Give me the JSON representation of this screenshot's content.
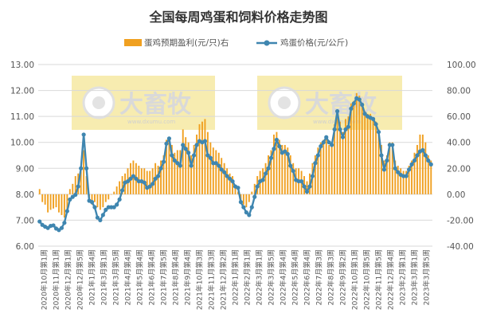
{
  "chart_data": {
    "type": "bar+line",
    "title": "全国每周鸡蛋和饲料价格走势图",
    "legend": {
      "position": "top",
      "bar_label": "蛋鸡预期盈利(元/只)右",
      "line_label": "鸡蛋价格(元/公斤)"
    },
    "colors": {
      "bar": "#f0a020",
      "line": "#3f86b0",
      "marker": "#3f86b0",
      "watermark": "#f7ecb0"
    },
    "left_axis": {
      "min": 6.0,
      "max": 13.0,
      "step": 1.0,
      "ticks": [
        "6.00",
        "7.00",
        "8.00",
        "9.00",
        "10.00",
        "11.00",
        "12.00",
        "13.00"
      ]
    },
    "right_axis": {
      "min": -40,
      "max": 100,
      "step": 20,
      "ticks": [
        "-40.00",
        "-20.00",
        "0.00",
        "20.00",
        "40.00",
        "60.00",
        "80.00",
        "100.00"
      ]
    },
    "grid": true,
    "x_labels": [
      "2020年10月第1周",
      "2020年11月第1周",
      "2020年12月第1周",
      "2020年12月第5周",
      "2021年1月第4周",
      "2021年3月第1周",
      "2021年3月第5周",
      "2021年4月第4周",
      "2021年5月第4周",
      "2021年6月第4周",
      "2021年7月第5周",
      "2021年8月第4周",
      "2021年9月第4周",
      "2021年10月第3周",
      "2021年11月第3周",
      "2021年12月第2周",
      "2022年1月第1周",
      "2022年2月第1周",
      "2022年3月第1周",
      "2022年3月第5周",
      "2022年4月第4周",
      "2022年5月第4周",
      "2022年6月第4周",
      "2022年7月第3周",
      "2022年8月第3周",
      "2022年9月第2周",
      "2022年10月第1周",
      "2022年10月第5周",
      "2022年11月第5周",
      "2022年12月第4周",
      "2023年2月第1周",
      "2023年3月第1周",
      "2023年3月第5周"
    ],
    "price": [
      6.95,
      6.82,
      6.75,
      6.7,
      6.78,
      6.8,
      6.68,
      6.62,
      6.7,
      6.9,
      7.35,
      7.8,
      7.9,
      7.98,
      8.3,
      9.0,
      10.3,
      9.0,
      7.75,
      7.7,
      7.5,
      7.1,
      7.0,
      7.2,
      7.4,
      7.5,
      7.5,
      7.5,
      7.6,
      7.8,
      8.15,
      8.45,
      8.5,
      8.6,
      8.7,
      8.6,
      8.5,
      8.5,
      8.45,
      8.25,
      8.3,
      8.4,
      8.6,
      8.7,
      9.0,
      9.25,
      9.95,
      10.15,
      9.5,
      9.3,
      9.2,
      9.1,
      9.9,
      9.75,
      9.6,
      9.1,
      9.5,
      9.9,
      10.05,
      10.0,
      10.05,
      9.5,
      9.4,
      9.2,
      9.2,
      9.1,
      8.95,
      8.85,
      8.7,
      8.6,
      8.5,
      8.3,
      8.25,
      7.7,
      7.5,
      7.3,
      7.2,
      7.5,
      7.9,
      8.3,
      8.5,
      8.55,
      8.8,
      9.0,
      9.4,
      9.75,
      10.1,
      9.85,
      9.6,
      9.65,
      9.55,
      9.1,
      8.9,
      8.55,
      8.5,
      8.5,
      8.3,
      8.1,
      8.3,
      8.7,
      9.2,
      9.5,
      9.85,
      10.0,
      10.2,
      10.0,
      9.9,
      10.5,
      11.2,
      10.5,
      10.2,
      10.5,
      10.6,
      11.3,
      11.5,
      11.7,
      11.65,
      11.45,
      11.1,
      11.0,
      10.95,
      10.9,
      10.7,
      10.4,
      9.5,
      8.95,
      9.3,
      9.9,
      9.9,
      9.0,
      8.85,
      8.75,
      8.7,
      8.7,
      8.95,
      9.15,
      9.3,
      9.5,
      9.65,
      9.7,
      9.5,
      9.3,
      9.15
    ],
    "profit": [
      4,
      -6,
      -8,
      -14,
      -12,
      -11,
      -10,
      -14,
      -16,
      -18,
      -14,
      4,
      8,
      14,
      16,
      18,
      34,
      14,
      -4,
      -8,
      -6,
      -10,
      -12,
      -10,
      -6,
      -4,
      0,
      2,
      6,
      10,
      14,
      16,
      20,
      24,
      26,
      24,
      22,
      20,
      20,
      18,
      18,
      20,
      24,
      22,
      26,
      30,
      42,
      44,
      38,
      32,
      34,
      34,
      50,
      44,
      40,
      30,
      38,
      46,
      54,
      56,
      58,
      48,
      40,
      36,
      34,
      32,
      28,
      24,
      20,
      16,
      14,
      6,
      2,
      -6,
      -8,
      -10,
      -6,
      2,
      8,
      14,
      18,
      20,
      24,
      30,
      34,
      46,
      48,
      42,
      38,
      38,
      36,
      30,
      24,
      20,
      20,
      18,
      14,
      10,
      16,
      24,
      30,
      36,
      40,
      42,
      44,
      38,
      40,
      54,
      64,
      56,
      48,
      58,
      60,
      70,
      72,
      78,
      76,
      70,
      64,
      62,
      62,
      58,
      56,
      50,
      38,
      26,
      30,
      40,
      40,
      26,
      22,
      20,
      18,
      18,
      22,
      26,
      32,
      38,
      46,
      46,
      40,
      30,
      26
    ]
  },
  "watermarks": [
    {
      "text": "大畜牧",
      "sub": "www.dxumu.com"
    },
    {
      "text": "大畜牧",
      "sub": "www.dxumu.com"
    }
  ]
}
